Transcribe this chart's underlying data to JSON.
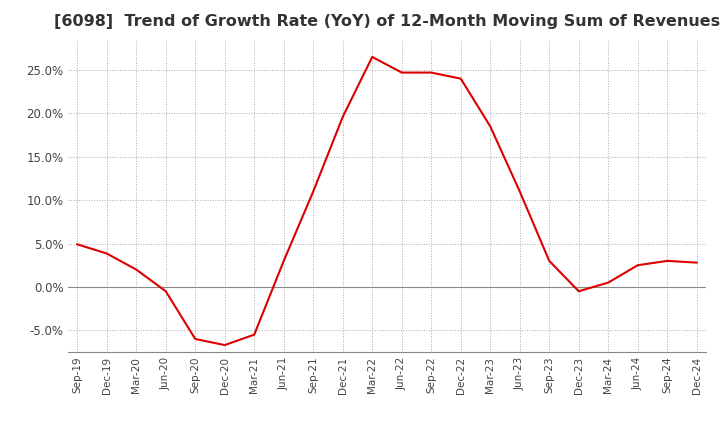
{
  "title": "[6098]  Trend of Growth Rate (YoY) of 12-Month Moving Sum of Revenues",
  "title_fontsize": 11.5,
  "title_color": "#333333",
  "line_color": "#dd0000",
  "background_color": "#ffffff",
  "grid_color": "#aaaaaa",
  "x_labels": [
    "Sep-19",
    "Dec-19",
    "Mar-20",
    "Jun-20",
    "Sep-20",
    "Dec-20",
    "Mar-21",
    "Jun-21",
    "Sep-21",
    "Dec-21",
    "Mar-22",
    "Jun-22",
    "Sep-22",
    "Dec-22",
    "Mar-23",
    "Jun-23",
    "Sep-23",
    "Dec-23",
    "Mar-24",
    "Jun-24",
    "Sep-24",
    "Dec-24"
  ],
  "y_values": [
    0.0491,
    0.0385,
    0.02,
    -0.005,
    -0.06,
    -0.067,
    -0.055,
    0.03,
    0.11,
    0.196,
    0.265,
    0.247,
    0.247,
    0.24,
    0.185,
    0.11,
    0.03,
    -0.005,
    0.005,
    0.025,
    0.03,
    0.028
  ],
  "ylim": [
    -0.075,
    0.285
  ],
  "yticks": [
    -0.05,
    0.0,
    0.05,
    0.1,
    0.15,
    0.2,
    0.25
  ]
}
